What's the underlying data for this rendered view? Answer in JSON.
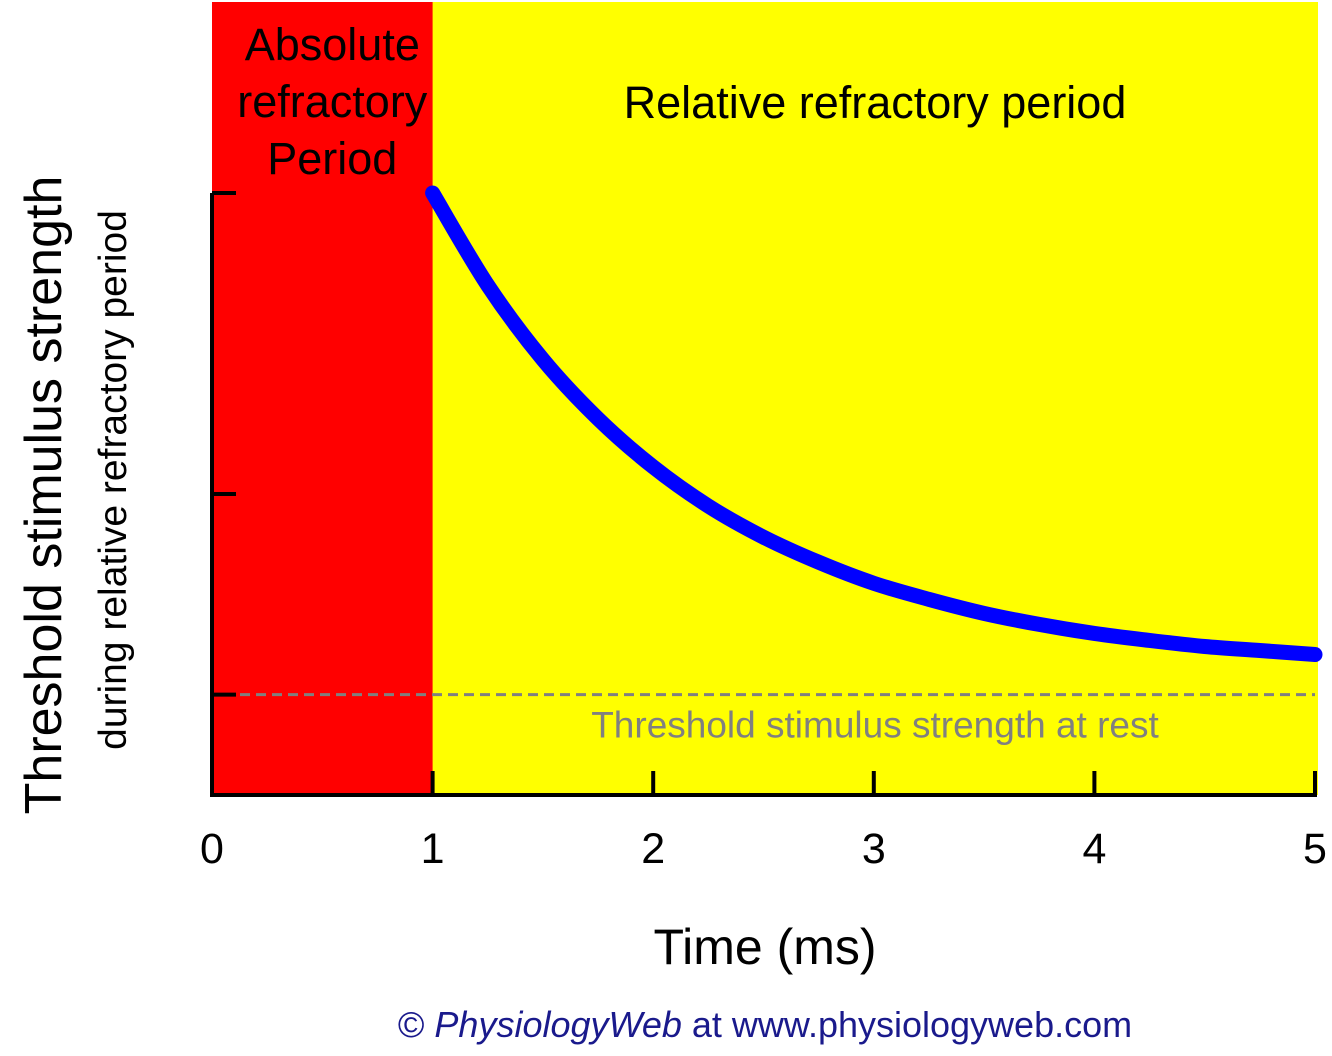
{
  "chart_data": {
    "type": "line",
    "xlabel": "Time (ms)",
    "ylabel": "Threshold stimulus strength",
    "ylabel_secondary": "during relative refractory period",
    "xlim": [
      0,
      5
    ],
    "ylim": [
      0,
      6
    ],
    "x_ticks": [
      "0",
      "1",
      "2",
      "3",
      "4",
      "5"
    ],
    "y_ticks_count": 3,
    "y_tick_values": [
      1,
      3,
      6
    ],
    "grid": false,
    "regions": [
      {
        "label": "Absolute refractory Period",
        "lines": [
          "Absolute",
          "refractory",
          "Period"
        ],
        "x_start": 0,
        "x_end": 1,
        "color": "#ff0000"
      },
      {
        "label": "Relative refractory period",
        "lines": [
          "Relative refractory period"
        ],
        "x_start": 1,
        "x_end": 5,
        "color": "#ffff00"
      }
    ],
    "series": [
      {
        "color": "#0000ff",
        "x": [
          1.0,
          1.25,
          1.5,
          1.75,
          2.0,
          2.25,
          2.5,
          2.75,
          3.0,
          3.25,
          3.5,
          3.75,
          4.0,
          4.25,
          4.5,
          4.75,
          5.0
        ],
        "y": [
          6.0,
          5.08,
          4.34,
          3.75,
          3.27,
          2.88,
          2.57,
          2.32,
          2.11,
          1.95,
          1.81,
          1.7,
          1.61,
          1.54,
          1.48,
          1.44,
          1.4
        ]
      }
    ],
    "reference_line": {
      "label": "Threshold stimulus strength at rest",
      "y": 1,
      "color": "#808080",
      "style": "dashed"
    }
  },
  "footer": {
    "copyright": "©",
    "brand": "PhysiologyWeb",
    "rest": "at www.physiologyweb.com"
  }
}
